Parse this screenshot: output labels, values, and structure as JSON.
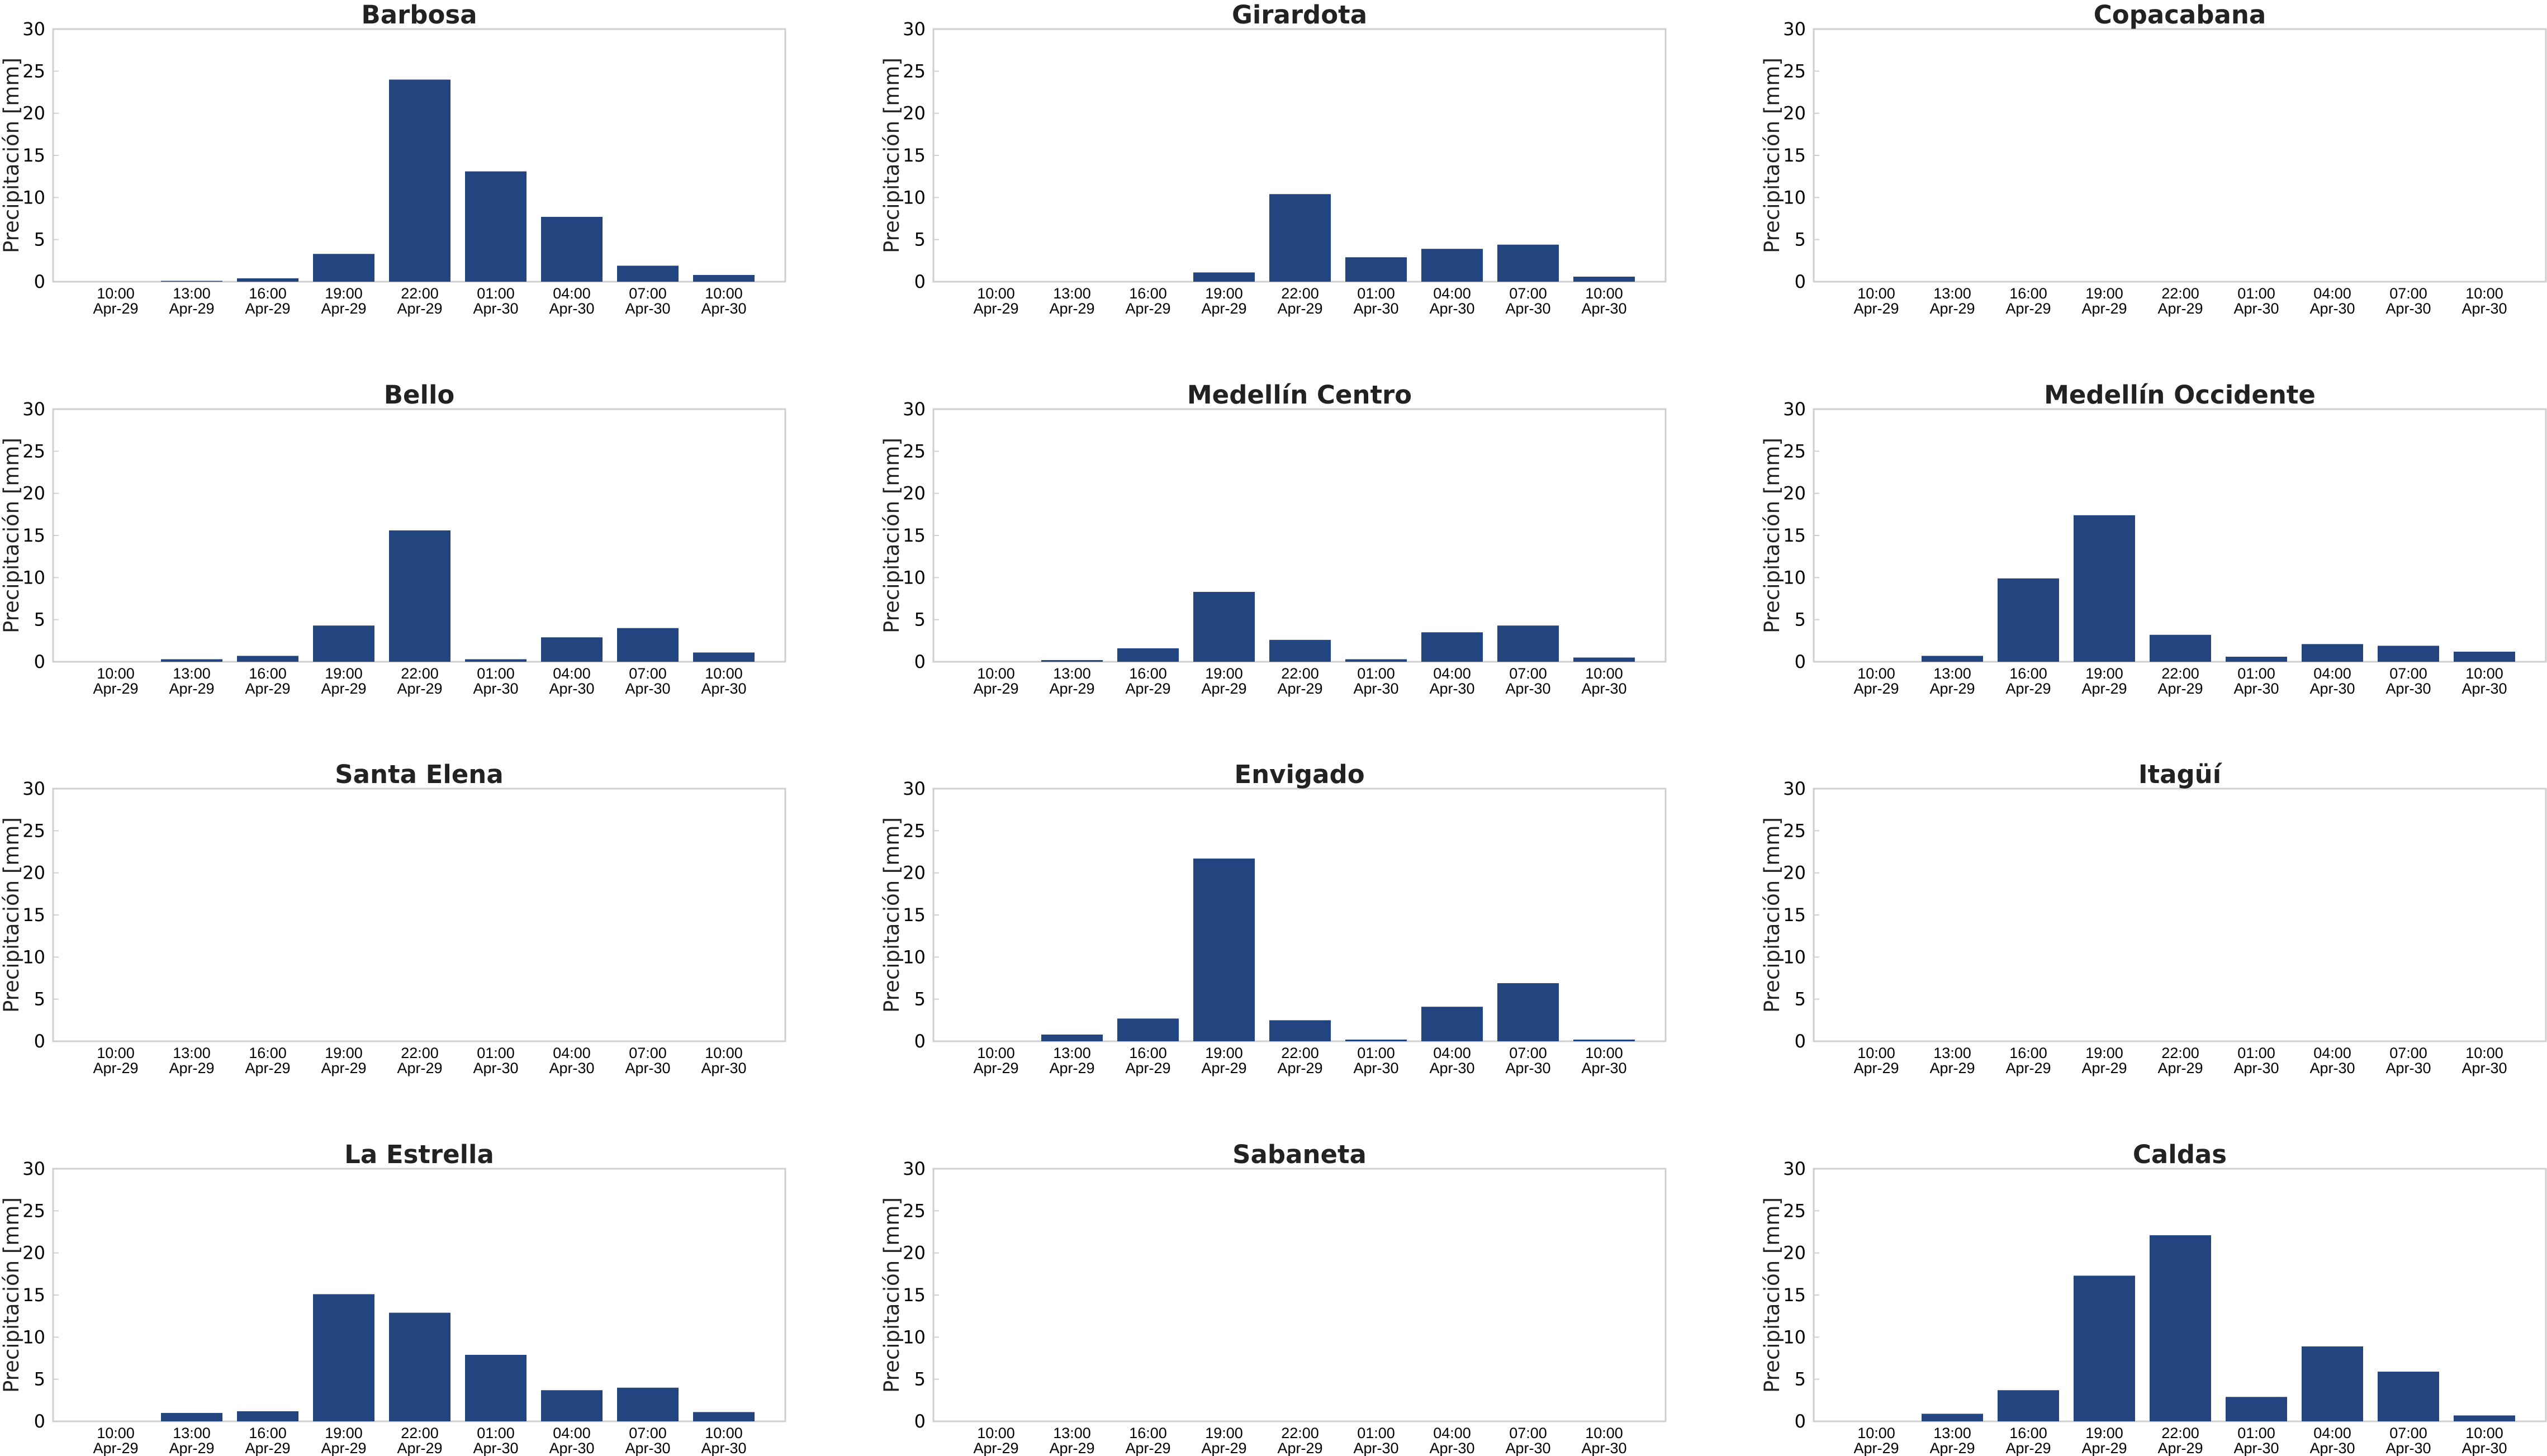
{
  "colors": {
    "bar": "#23457f",
    "frame": "#cfcfcf",
    "text": "#222222"
  },
  "chart_data": [
    {
      "type": "bar",
      "title": "Barbosa",
      "ylabel": "Precipitación [mm]",
      "ylim": [
        0,
        30
      ],
      "yticks": [
        0,
        5,
        10,
        15,
        20,
        25,
        30
      ],
      "grid": false,
      "categories": [
        "10:00\nApr-29",
        "13:00\nApr-29",
        "16:00\nApr-29",
        "19:00\nApr-29",
        "22:00\nApr-29",
        "01:00\nApr-30",
        "04:00\nApr-30",
        "07:00\nApr-30",
        "10:00\nApr-30"
      ],
      "values": [
        0,
        0.1,
        0.4,
        3.3,
        24.0,
        13.1,
        7.7,
        1.9,
        0.8
      ]
    },
    {
      "type": "bar",
      "title": "Girardota",
      "ylabel": "Precipitación [mm]",
      "ylim": [
        0,
        30
      ],
      "yticks": [
        0,
        5,
        10,
        15,
        20,
        25,
        30
      ],
      "grid": false,
      "categories": [
        "10:00\nApr-29",
        "13:00\nApr-29",
        "16:00\nApr-29",
        "19:00\nApr-29",
        "22:00\nApr-29",
        "01:00\nApr-30",
        "04:00\nApr-30",
        "07:00\nApr-30",
        "10:00\nApr-30"
      ],
      "values": [
        0,
        0,
        0,
        1.1,
        10.4,
        2.9,
        3.9,
        4.4,
        0.6
      ]
    },
    {
      "type": "bar",
      "title": "Copacabana",
      "ylabel": "Precipitación [mm]",
      "ylim": [
        0,
        30
      ],
      "yticks": [
        0,
        5,
        10,
        15,
        20,
        25,
        30
      ],
      "grid": false,
      "categories": [
        "10:00\nApr-29",
        "13:00\nApr-29",
        "16:00\nApr-29",
        "19:00\nApr-29",
        "22:00\nApr-29",
        "01:00\nApr-30",
        "04:00\nApr-30",
        "07:00\nApr-30",
        "10:00\nApr-30"
      ],
      "values": [
        0,
        0,
        0,
        0,
        0,
        0,
        0,
        0,
        0
      ]
    },
    {
      "type": "bar",
      "title": "Bello",
      "ylabel": "Precipitación [mm]",
      "ylim": [
        0,
        30
      ],
      "yticks": [
        0,
        5,
        10,
        15,
        20,
        25,
        30
      ],
      "grid": false,
      "categories": [
        "10:00\nApr-29",
        "13:00\nApr-29",
        "16:00\nApr-29",
        "19:00\nApr-29",
        "22:00\nApr-29",
        "01:00\nApr-30",
        "04:00\nApr-30",
        "07:00\nApr-30",
        "10:00\nApr-30"
      ],
      "values": [
        0,
        0.3,
        0.7,
        4.3,
        15.6,
        0.3,
        2.9,
        4.0,
        1.1
      ]
    },
    {
      "type": "bar",
      "title": "Medellín Centro",
      "ylabel": "Precipitación [mm]",
      "ylim": [
        0,
        30
      ],
      "yticks": [
        0,
        5,
        10,
        15,
        20,
        25,
        30
      ],
      "grid": false,
      "categories": [
        "10:00\nApr-29",
        "13:00\nApr-29",
        "16:00\nApr-29",
        "19:00\nApr-29",
        "22:00\nApr-29",
        "01:00\nApr-30",
        "04:00\nApr-30",
        "07:00\nApr-30",
        "10:00\nApr-30"
      ],
      "values": [
        0,
        0.2,
        1.6,
        8.3,
        2.6,
        0.3,
        3.5,
        4.3,
        0.5
      ]
    },
    {
      "type": "bar",
      "title": "Medellín Occidente",
      "ylabel": "Precipitación [mm]",
      "ylim": [
        0,
        30
      ],
      "yticks": [
        0,
        5,
        10,
        15,
        20,
        25,
        30
      ],
      "grid": false,
      "categories": [
        "10:00\nApr-29",
        "13:00\nApr-29",
        "16:00\nApr-29",
        "19:00\nApr-29",
        "22:00\nApr-29",
        "01:00\nApr-30",
        "04:00\nApr-30",
        "07:00\nApr-30",
        "10:00\nApr-30"
      ],
      "values": [
        0,
        0.7,
        9.9,
        17.4,
        3.2,
        0.6,
        2.1,
        1.9,
        1.2
      ]
    },
    {
      "type": "bar",
      "title": "Santa Elena",
      "ylabel": "Precipitación [mm]",
      "ylim": [
        0,
        30
      ],
      "yticks": [
        0,
        5,
        10,
        15,
        20,
        25,
        30
      ],
      "grid": false,
      "categories": [
        "10:00\nApr-29",
        "13:00\nApr-29",
        "16:00\nApr-29",
        "19:00\nApr-29",
        "22:00\nApr-29",
        "01:00\nApr-30",
        "04:00\nApr-30",
        "07:00\nApr-30",
        "10:00\nApr-30"
      ],
      "values": [
        0,
        0,
        0,
        0,
        0,
        0,
        0,
        0,
        0
      ]
    },
    {
      "type": "bar",
      "title": "Envigado",
      "ylabel": "Precipitación [mm]",
      "ylim": [
        0,
        30
      ],
      "yticks": [
        0,
        5,
        10,
        15,
        20,
        25,
        30
      ],
      "grid": false,
      "categories": [
        "10:00\nApr-29",
        "13:00\nApr-29",
        "16:00\nApr-29",
        "19:00\nApr-29",
        "22:00\nApr-29",
        "01:00\nApr-30",
        "04:00\nApr-30",
        "07:00\nApr-30",
        "10:00\nApr-30"
      ],
      "values": [
        0,
        0.8,
        2.7,
        21.7,
        2.5,
        0.2,
        4.1,
        6.9,
        0.2
      ]
    },
    {
      "type": "bar",
      "title": "Itagüí",
      "ylabel": "Precipitación [mm]",
      "ylim": [
        0,
        30
      ],
      "yticks": [
        0,
        5,
        10,
        15,
        20,
        25,
        30
      ],
      "grid": false,
      "categories": [
        "10:00\nApr-29",
        "13:00\nApr-29",
        "16:00\nApr-29",
        "19:00\nApr-29",
        "22:00\nApr-29",
        "01:00\nApr-30",
        "04:00\nApr-30",
        "07:00\nApr-30",
        "10:00\nApr-30"
      ],
      "values": [
        0,
        0,
        0,
        0,
        0,
        0,
        0,
        0,
        0
      ]
    },
    {
      "type": "bar",
      "title": "La Estrella",
      "ylabel": "Precipitación [mm]",
      "ylim": [
        0,
        30
      ],
      "yticks": [
        0,
        5,
        10,
        15,
        20,
        25,
        30
      ],
      "grid": false,
      "categories": [
        "10:00\nApr-29",
        "13:00\nApr-29",
        "16:00\nApr-29",
        "19:00\nApr-29",
        "22:00\nApr-29",
        "01:00\nApr-30",
        "04:00\nApr-30",
        "07:00\nApr-30",
        "10:00\nApr-30"
      ],
      "values": [
        0,
        1.0,
        1.2,
        15.1,
        12.9,
        7.9,
        3.7,
        4.0,
        1.1
      ]
    },
    {
      "type": "bar",
      "title": "Sabaneta",
      "ylabel": "Precipitación [mm]",
      "ylim": [
        0,
        30
      ],
      "yticks": [
        0,
        5,
        10,
        15,
        20,
        25,
        30
      ],
      "grid": false,
      "categories": [
        "10:00\nApr-29",
        "13:00\nApr-29",
        "16:00\nApr-29",
        "19:00\nApr-29",
        "22:00\nApr-29",
        "01:00\nApr-30",
        "04:00\nApr-30",
        "07:00\nApr-30",
        "10:00\nApr-30"
      ],
      "values": [
        0,
        0,
        0,
        0,
        0,
        0,
        0,
        0,
        0
      ]
    },
    {
      "type": "bar",
      "title": "Caldas",
      "ylabel": "Precipitación [mm]",
      "ylim": [
        0,
        30
      ],
      "yticks": [
        0,
        5,
        10,
        15,
        20,
        25,
        30
      ],
      "grid": false,
      "categories": [
        "10:00\nApr-29",
        "13:00\nApr-29",
        "16:00\nApr-29",
        "19:00\nApr-29",
        "22:00\nApr-29",
        "01:00\nApr-30",
        "04:00\nApr-30",
        "07:00\nApr-30",
        "10:00\nApr-30"
      ],
      "values": [
        0,
        0.9,
        3.7,
        17.3,
        22.1,
        2.9,
        8.9,
        5.9,
        0.7
      ]
    }
  ]
}
